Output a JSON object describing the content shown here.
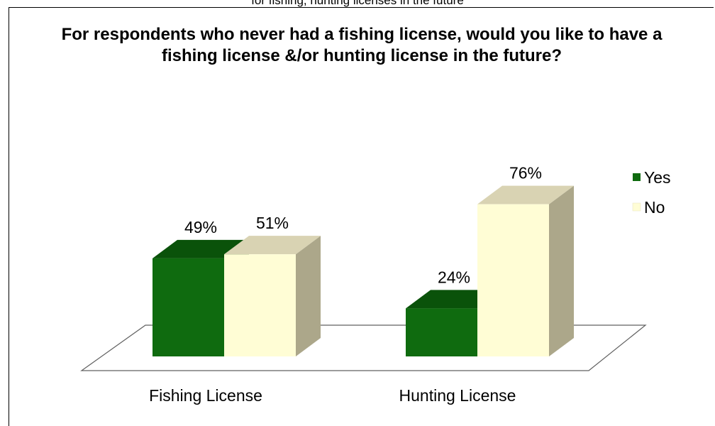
{
  "cut_caption": "for fishing, hunting licenses in the future",
  "chart_data": {
    "type": "bar",
    "title": "For respondents who never had a fishing license, would you like to have a fishing license &/or hunting license in the future?",
    "categories": [
      "Fishing License",
      "Hunting License"
    ],
    "series": [
      {
        "name": "Yes",
        "values": [
          49,
          24
        ],
        "labels": [
          "49%",
          "24%"
        ],
        "color": "#0f6b0f",
        "top_color": "#0a520a",
        "side_color": "#094209"
      },
      {
        "name": "No",
        "values": [
          51,
          76
        ],
        "labels": [
          "51%",
          "76%"
        ],
        "color": "#fffdd5",
        "top_color": "#d9d3b3",
        "side_color": "#aca78a"
      }
    ],
    "ylim": [
      0,
      100
    ],
    "unit": "%",
    "grid": false,
    "legend": "right"
  }
}
